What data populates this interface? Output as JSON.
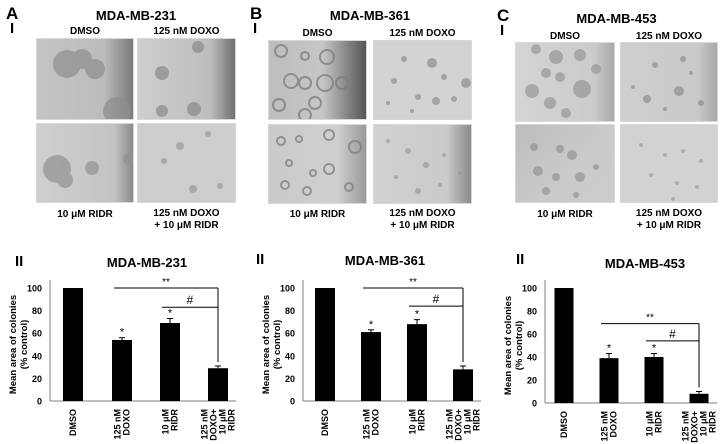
{
  "figure": {
    "panels": [
      {
        "letter": "A",
        "section_I": "I",
        "section_II": "II",
        "cell_line": "MDA-MB-231",
        "image_labels": {
          "top_left": "DMSO",
          "top_right": "125 nM DOXO",
          "bottom_left": "10 μM RIDR",
          "bottom_right_line1": "125 nM DOXO",
          "bottom_right_line2": "+ 10 μM RIDR"
        }
      },
      {
        "letter": "B",
        "section_I": "I",
        "section_II": "II",
        "cell_line": "MDA-MB-361",
        "image_labels": {
          "top_left": "DMSO",
          "top_right": "125 nM DOXO",
          "bottom_left": "10 μM RIDR",
          "bottom_right_line1": "125 nM DOXO",
          "bottom_right_line2": "+ 10 μM RIDR"
        }
      },
      {
        "letter": "C",
        "section_I": "I",
        "section_II": "II",
        "cell_line": "MDA-MB-453",
        "image_labels": {
          "top_left": "DMSO",
          "top_right": "125 nM DOXO",
          "bottom_left": "10 μM RIDR",
          "bottom_right_line1": "125 nM DOXO",
          "bottom_right_line2": "+ 10 μM RIDR"
        }
      }
    ],
    "colors": {
      "bar": "#000000",
      "axis": "#808080",
      "background": "#ffffff"
    }
  },
  "chart_data": [
    {
      "type": "bar",
      "title": "MDA-MB-231",
      "xlabel": "",
      "ylabel": "Mean area of colonies (% control)",
      "ylim": [
        0,
        100
      ],
      "yticks": [
        0,
        20,
        40,
        60,
        80,
        100
      ],
      "categories": [
        "DMSO",
        "125 nM DOXO",
        "10 μM RIDR",
        "125 nM DOXO+ 10 μM RIDR"
      ],
      "values": [
        100,
        54,
        69,
        29
      ],
      "errors": [
        0,
        2,
        4,
        2
      ],
      "bar_annotations": [
        "",
        "*",
        "*",
        ""
      ],
      "brackets": [
        {
          "from": "125 nM DOXO",
          "to": "125 nM DOXO+ 10 μM RIDR",
          "label": "**",
          "y": 100
        },
        {
          "from": "10 μM RIDR",
          "to": "125 nM DOXO+ 10 μM RIDR",
          "label": "#",
          "y": 83
        }
      ],
      "grid": false,
      "legend": null
    },
    {
      "type": "bar",
      "title": "MDA-MB-361",
      "xlabel": "",
      "ylabel": "Mean area of colonies (% control)",
      "ylim": [
        0,
        100
      ],
      "yticks": [
        0,
        20,
        40,
        60,
        80,
        100
      ],
      "categories": [
        "DMSO",
        "125 nM DOXO",
        "10 μM RIDR",
        "125 nM DOXO+ 10 μM RIDR"
      ],
      "values": [
        100,
        61,
        68,
        28
      ],
      "errors": [
        0,
        2,
        4,
        3
      ],
      "bar_annotations": [
        "",
        "*",
        "*",
        ""
      ],
      "brackets": [
        {
          "from": "125 nM DOXO",
          "to": "125 nM DOXO+ 10 μM RIDR",
          "label": "**",
          "y": 100
        },
        {
          "from": "10 μM RIDR",
          "to": "125 nM DOXO+ 10 μM RIDR",
          "label": "#",
          "y": 84
        }
      ],
      "grid": false,
      "legend": null
    },
    {
      "type": "bar",
      "title": "MDA-MB-453",
      "xlabel": "",
      "ylabel": "Mean area of colonies (% control)",
      "ylim": [
        0,
        100
      ],
      "yticks": [
        0,
        20,
        40,
        60,
        80,
        100
      ],
      "categories": [
        "DMSO",
        "125 nM DOXO",
        "10 μM RIDR",
        "125 nM DOXO+ 10 μM RIDR"
      ],
      "values": [
        100,
        39,
        40,
        8
      ],
      "errors": [
        0,
        4,
        3,
        2
      ],
      "bar_annotations": [
        "",
        "*",
        "*",
        ""
      ],
      "brackets": [
        {
          "from": "125 nM DOXO",
          "to": "125 nM DOXO+ 10 μM RIDR",
          "label": "**",
          "y": 69
        },
        {
          "from": "10 μM RIDR",
          "to": "125 nM DOXO+ 10 μM RIDR",
          "label": "#",
          "y": 54
        }
      ],
      "grid": false,
      "legend": null
    }
  ]
}
